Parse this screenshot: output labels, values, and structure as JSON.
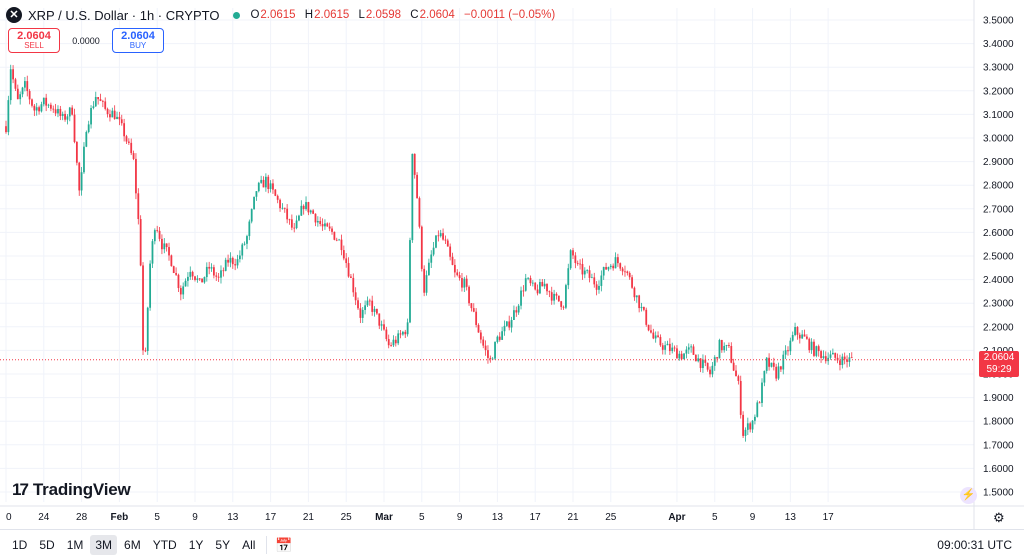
{
  "header": {
    "symbol": "XRP / U.S. Dollar · 1h · CRYPTO",
    "ohlc": [
      {
        "key": "O",
        "value": "2.0615"
      },
      {
        "key": "H",
        "value": "2.0615"
      },
      {
        "key": "L",
        "value": "2.0598"
      },
      {
        "key": "C",
        "value": "2.0604"
      }
    ],
    "change": "−0.0011 (−0.05%)"
  },
  "trade": {
    "sell_price": "2.0604",
    "sell_label": "SELL",
    "spread": "0.0000",
    "buy_price": "2.0604",
    "buy_label": "BUY"
  },
  "price_tag": {
    "price": "2.0604",
    "countdown": "59:29"
  },
  "logo_text": "TradingView",
  "ranges": [
    "1D",
    "5D",
    "1M",
    "3M",
    "6M",
    "YTD",
    "1Y",
    "5Y",
    "All"
  ],
  "active_range": "3M",
  "clock": "09:00:31 UTC",
  "colors": {
    "up": "#22ab94",
    "down": "#f23645",
    "buy": "#2962ff",
    "grid": "#f0f3fa"
  },
  "chart_data": {
    "type": "candlestick",
    "yticks": [
      "3.5000",
      "3.4000",
      "3.3000",
      "3.2000",
      "3.1000",
      "3.0000",
      "2.9000",
      "2.8000",
      "2.7000",
      "2.6000",
      "2.5000",
      "2.4000",
      "2.3000",
      "2.2000",
      "2.1000",
      "2.0000",
      "1.9000",
      "1.8000",
      "1.7000",
      "1.6000",
      "1.5000"
    ],
    "ylim": [
      1.5,
      3.5
    ],
    "xticks": [
      {
        "label": "0",
        "day": 0,
        "bold": false
      },
      {
        "label": "24",
        "day": 4,
        "bold": false
      },
      {
        "label": "28",
        "day": 8,
        "bold": false
      },
      {
        "label": "Feb",
        "day": 12,
        "bold": true
      },
      {
        "label": "5",
        "day": 16,
        "bold": false
      },
      {
        "label": "9",
        "day": 20,
        "bold": false
      },
      {
        "label": "13",
        "day": 24,
        "bold": false
      },
      {
        "label": "17",
        "day": 28,
        "bold": false
      },
      {
        "label": "21",
        "day": 32,
        "bold": false
      },
      {
        "label": "25",
        "day": 36,
        "bold": false
      },
      {
        "label": "Mar",
        "day": 40,
        "bold": true
      },
      {
        "label": "5",
        "day": 44,
        "bold": false
      },
      {
        "label": "9",
        "day": 48,
        "bold": false
      },
      {
        "label": "13",
        "day": 52,
        "bold": false
      },
      {
        "label": "17",
        "day": 56,
        "bold": false
      },
      {
        "label": "21",
        "day": 60,
        "bold": false
      },
      {
        "label": "25",
        "day": 64,
        "bold": false
      },
      {
        "label": "Apr",
        "day": 71,
        "bold": true
      },
      {
        "label": "5",
        "day": 75,
        "bold": false
      },
      {
        "label": "9",
        "day": 79,
        "bold": false
      },
      {
        "label": "13",
        "day": 83,
        "bold": false
      },
      {
        "label": "17",
        "day": 87,
        "bold": false
      }
    ],
    "last_price": 2.0604,
    "close_path": [
      [
        0,
        3.05
      ],
      [
        0.5,
        3.3
      ],
      [
        1.2,
        3.15
      ],
      [
        2,
        3.22
      ],
      [
        3,
        3.12
      ],
      [
        4,
        3.15
      ],
      [
        5,
        3.13
      ],
      [
        6,
        3.08
      ],
      [
        7,
        3.12
      ],
      [
        7.8,
        2.75
      ],
      [
        8.5,
        3.05
      ],
      [
        9.5,
        3.18
      ],
      [
        10.5,
        3.12
      ],
      [
        11.5,
        3.1
      ],
      [
        12.5,
        3.02
      ],
      [
        13.5,
        2.9
      ],
      [
        14.2,
        2.55
      ],
      [
        14.6,
        1.95
      ],
      [
        15.2,
        2.45
      ],
      [
        15.8,
        2.65
      ],
      [
        16.5,
        2.55
      ],
      [
        17.5,
        2.48
      ],
      [
        18.5,
        2.35
      ],
      [
        19.5,
        2.45
      ],
      [
        20.5,
        2.38
      ],
      [
        21.5,
        2.45
      ],
      [
        22.5,
        2.4
      ],
      [
        23.5,
        2.48
      ],
      [
        24.5,
        2.48
      ],
      [
        25.5,
        2.58
      ],
      [
        26.5,
        2.78
      ],
      [
        27.5,
        2.82
      ],
      [
        28.5,
        2.75
      ],
      [
        29.5,
        2.68
      ],
      [
        30.5,
        2.6
      ],
      [
        31.5,
        2.72
      ],
      [
        32.5,
        2.68
      ],
      [
        33.5,
        2.62
      ],
      [
        34.5,
        2.6
      ],
      [
        35.5,
        2.55
      ],
      [
        36.5,
        2.4
      ],
      [
        37.5,
        2.25
      ],
      [
        38.5,
        2.3
      ],
      [
        39.5,
        2.22
      ],
      [
        40.5,
        2.12
      ],
      [
        41.5,
        2.15
      ],
      [
        42.5,
        2.2
      ],
      [
        43,
        2.95
      ],
      [
        43.5,
        2.75
      ],
      [
        44.2,
        2.35
      ],
      [
        45,
        2.5
      ],
      [
        45.8,
        2.6
      ],
      [
        46.5,
        2.55
      ],
      [
        47.5,
        2.42
      ],
      [
        48.5,
        2.38
      ],
      [
        49.5,
        2.25
      ],
      [
        50.5,
        2.12
      ],
      [
        51.2,
        2.05
      ],
      [
        52,
        2.15
      ],
      [
        53,
        2.2
      ],
      [
        54,
        2.28
      ],
      [
        55,
        2.4
      ],
      [
        56,
        2.35
      ],
      [
        57,
        2.38
      ],
      [
        58,
        2.32
      ],
      [
        59,
        2.3
      ],
      [
        59.8,
        2.52
      ],
      [
        60.5,
        2.45
      ],
      [
        61.5,
        2.42
      ],
      [
        62.5,
        2.38
      ],
      [
        63.5,
        2.45
      ],
      [
        64.5,
        2.48
      ],
      [
        65.5,
        2.45
      ],
      [
        66.5,
        2.35
      ],
      [
        67.5,
        2.25
      ],
      [
        68.5,
        2.15
      ],
      [
        69.5,
        2.12
      ],
      [
        70.5,
        2.1
      ],
      [
        71.5,
        2.08
      ],
      [
        72.5,
        2.1
      ],
      [
        73.5,
        2.05
      ],
      [
        74.5,
        2.0
      ],
      [
        75.5,
        2.12
      ],
      [
        76.5,
        2.1
      ],
      [
        77.5,
        1.95
      ],
      [
        78,
        1.75
      ],
      [
        79,
        1.8
      ],
      [
        79.8,
        1.9
      ],
      [
        80.5,
        2.05
      ],
      [
        81.5,
        2.0
      ],
      [
        82.5,
        2.08
      ],
      [
        83.5,
        2.18
      ],
      [
        84.5,
        2.15
      ],
      [
        85.5,
        2.1
      ],
      [
        86.5,
        2.08
      ],
      [
        87.5,
        2.07
      ],
      [
        88.5,
        2.06
      ],
      [
        89.5,
        2.0604
      ]
    ]
  }
}
